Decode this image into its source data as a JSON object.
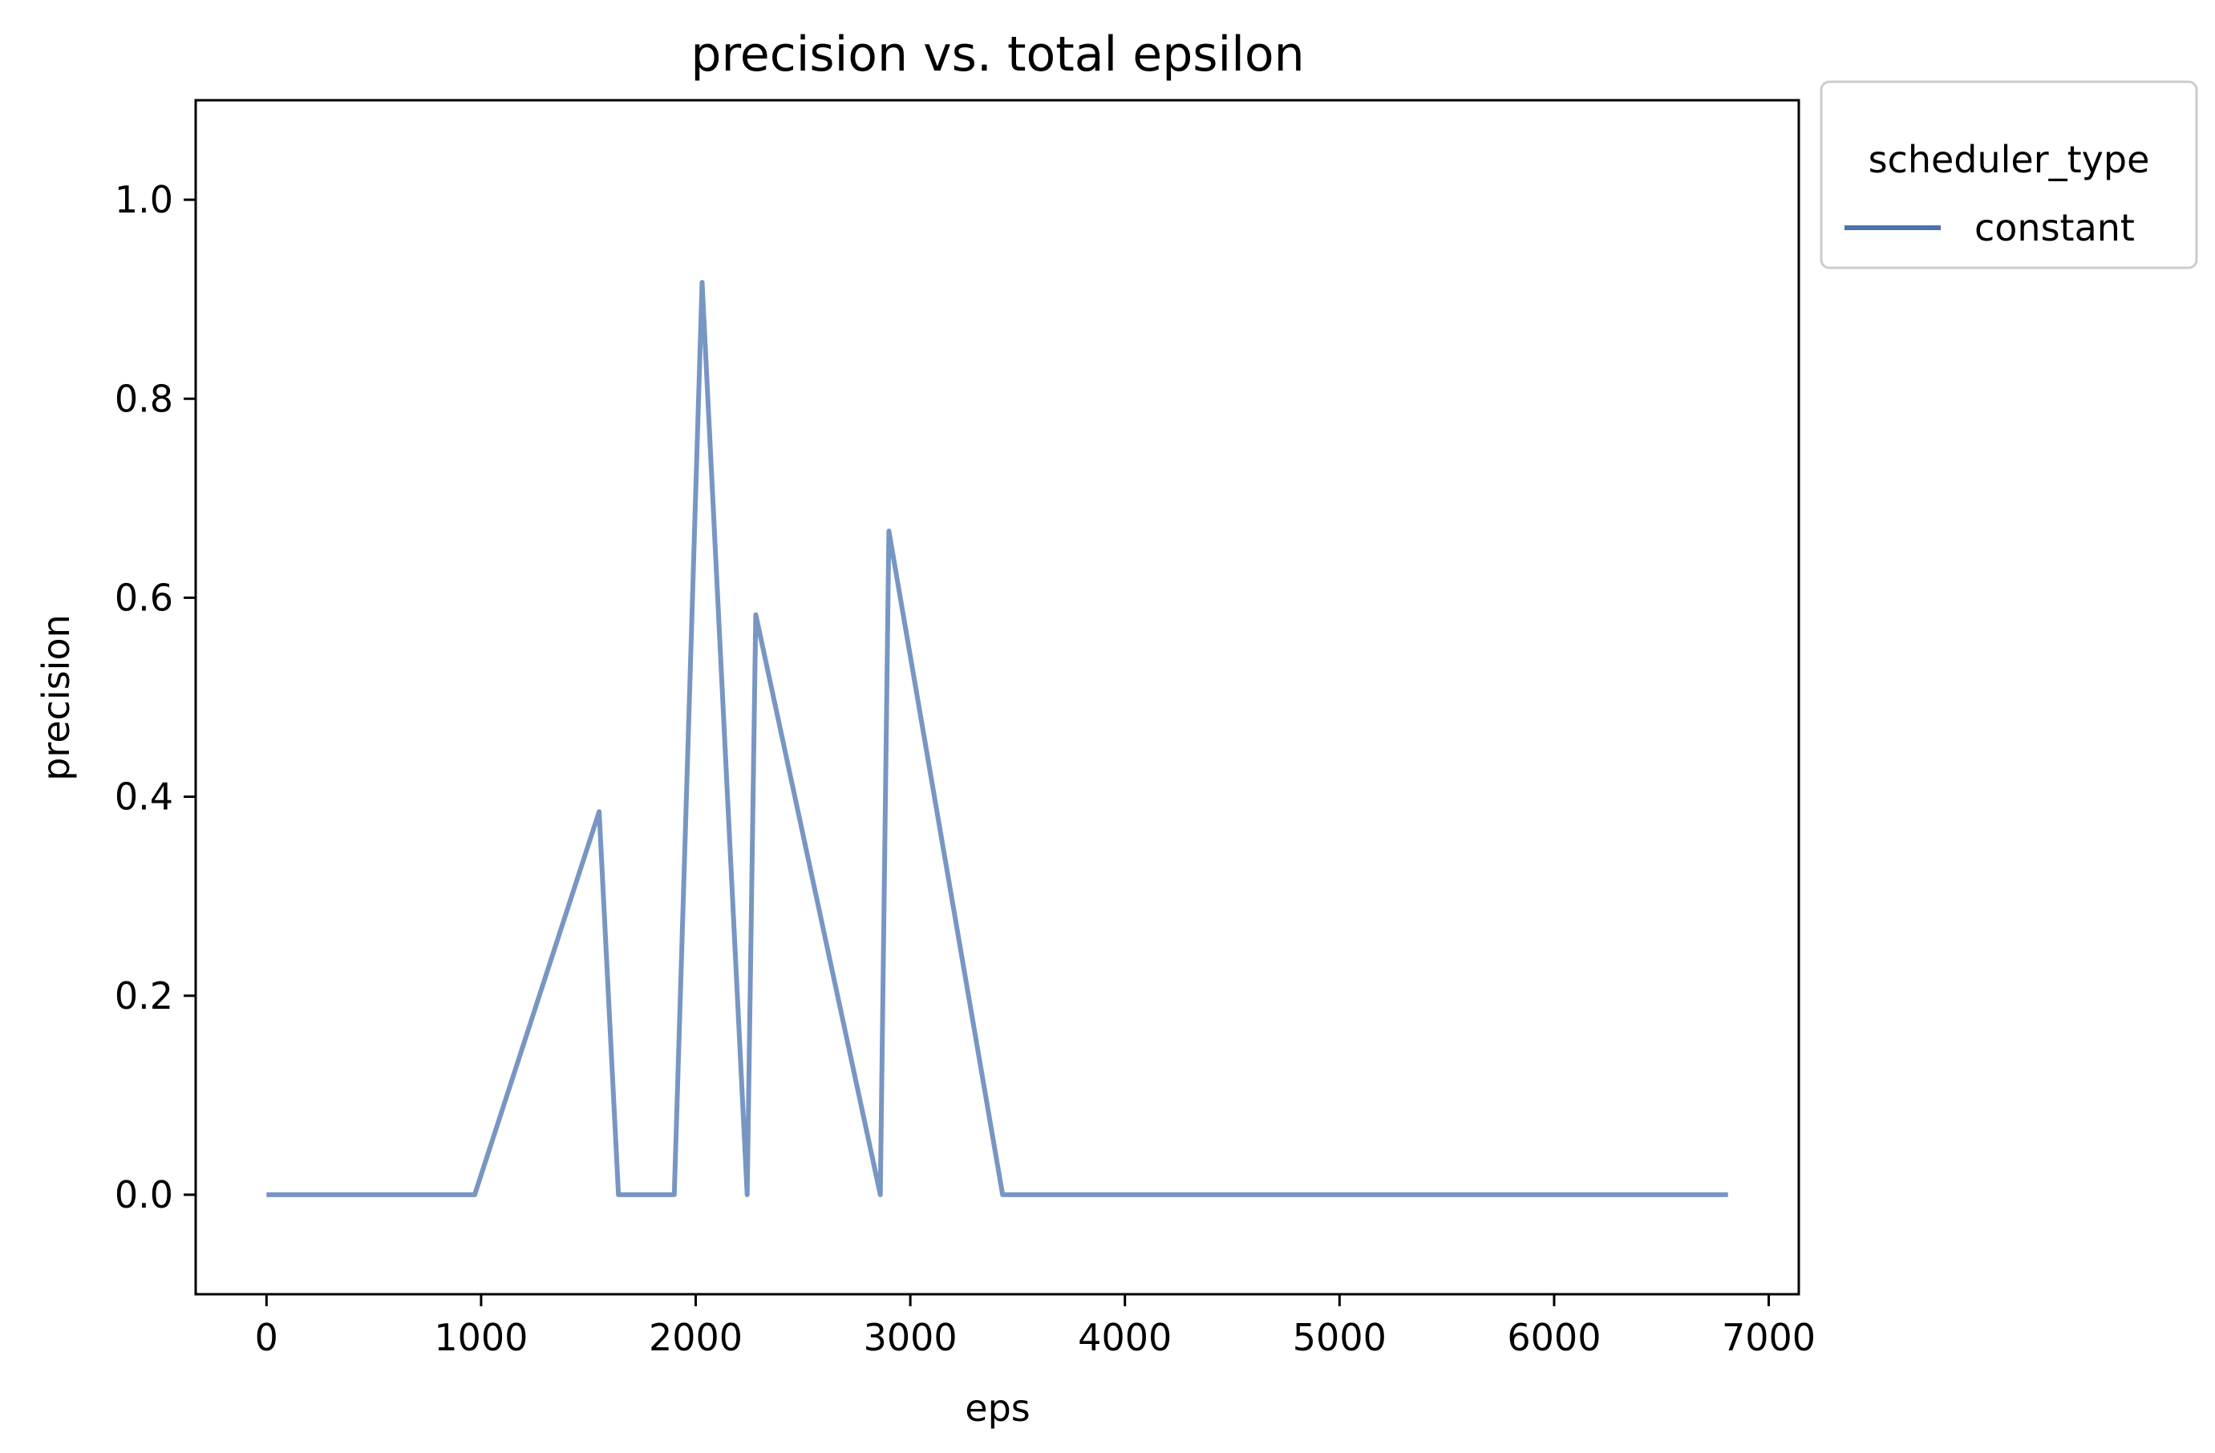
{
  "chart_data": {
    "type": "line",
    "title": "precision vs. total epsilon",
    "xlabel": "eps",
    "ylabel": "precision",
    "xlim": [
      -330,
      7140
    ],
    "ylim": [
      -0.1,
      1.1
    ],
    "xticks": [
      0,
      1000,
      2000,
      3000,
      4000,
      5000,
      6000,
      7000
    ],
    "yticks": [
      0.0,
      0.2,
      0.4,
      0.6,
      0.8,
      1.0
    ],
    "xtick_labels": [
      "0",
      "1000",
      "2000",
      "3000",
      "4000",
      "5000",
      "6000",
      "7000"
    ],
    "ytick_labels": [
      "0.0",
      "0.2",
      "0.4",
      "0.6",
      "0.8",
      "1.0"
    ],
    "grid": false,
    "legend": {
      "title": "scheduler_type",
      "placement": "outside-top-right",
      "entries": [
        "constant"
      ]
    },
    "series": [
      {
        "name": "constant",
        "color": "#7896c3",
        "legend_color": "#4c72b0",
        "x": [
          0,
          970,
          1550,
          1640,
          1900,
          2030,
          2240,
          2280,
          2860,
          2900,
          3430,
          6810
        ],
        "y": [
          0.0,
          0.0,
          0.385,
          0.0,
          0.0,
          0.917,
          0.0,
          0.583,
          0.0,
          0.667,
          0.0,
          0.0
        ]
      }
    ]
  }
}
